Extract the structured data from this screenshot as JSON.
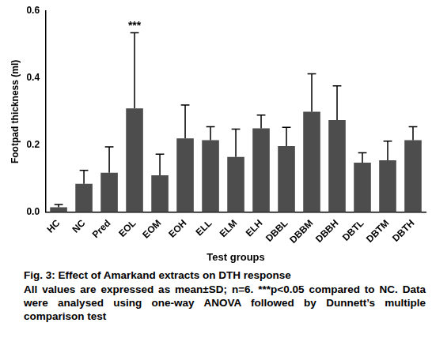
{
  "chart_data": {
    "type": "bar",
    "x_label": "Test groups",
    "y_label": "Footpad thickness (ml)",
    "categories": [
      "HC",
      "NC",
      "Pred",
      "EOL",
      "EOM",
      "EOH",
      "ELL",
      "ELM",
      "ELH",
      "DBBL",
      "DBBM",
      "DBBH",
      "DBTL",
      "DBTM",
      "DBTH"
    ],
    "values": [
      0.015,
      0.085,
      0.118,
      0.31,
      0.11,
      0.22,
      0.215,
      0.165,
      0.25,
      0.197,
      0.3,
      0.275,
      0.148,
      0.155,
      0.215
    ],
    "errors": [
      0.008,
      0.04,
      0.077,
      0.225,
      0.063,
      0.1,
      0.04,
      0.083,
      0.04,
      0.056,
      0.113,
      0.102,
      0.029,
      0.057,
      0.04
    ],
    "color": "#4d4d4d",
    "ylim": [
      0,
      0.6
    ],
    "yticks": [
      {
        "value": 0,
        "label": "0.0"
      },
      0.2,
      0.4,
      0.6
    ],
    "grid": false,
    "annotations": [
      {
        "category": "EOL",
        "text": "***"
      }
    ]
  },
  "caption": {
    "title": "Fig. 3: Effect of Amarkand extracts on DTH response",
    "note": "All values are expressed as mean±SD; n=6. ***p<0.05 compared to NC. Data were analysed using one-way ANOVA followed by Dunnett’s multiple comparison test"
  }
}
